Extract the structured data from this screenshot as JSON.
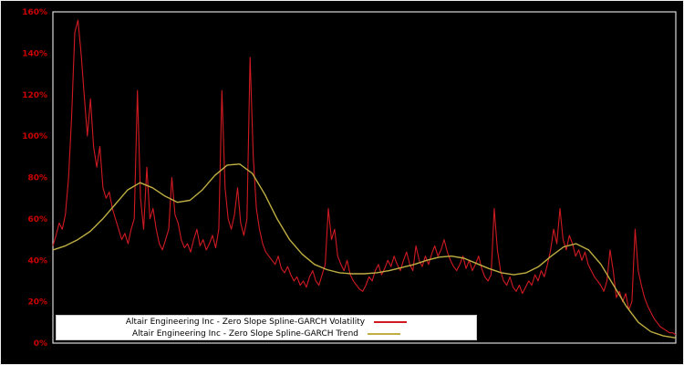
{
  "chart_data": {
    "type": "line",
    "title": "",
    "xlabel": "",
    "ylabel": "",
    "ylim": [
      0,
      160
    ],
    "grid": false,
    "legend_position": "bottom-center",
    "background_color": "#000000",
    "frame_color": "#d9d9d9",
    "axis_label_color": "#cc0000",
    "y_ticks": [
      "0%",
      "20%",
      "40%",
      "60%",
      "80%",
      "100%",
      "120%",
      "140%",
      "160%"
    ],
    "y_tick_values": [
      0,
      20,
      40,
      60,
      80,
      100,
      120,
      140,
      160
    ],
    "series": [
      {
        "name": "Altair Engineering Inc - Zero Slope Spline-GARCH Volatility",
        "color": "#d01a22",
        "values": [
          47,
          52,
          58,
          55,
          62,
          80,
          110,
          150,
          156,
          140,
          120,
          100,
          118,
          95,
          85,
          95,
          75,
          70,
          73,
          65,
          60,
          55,
          50,
          53,
          48,
          55,
          60,
          122,
          70,
          55,
          85,
          60,
          65,
          55,
          48,
          45,
          50,
          55,
          80,
          62,
          58,
          50,
          46,
          48,
          44,
          50,
          55,
          47,
          50,
          45,
          48,
          52,
          46,
          55,
          122,
          75,
          60,
          55,
          62,
          75,
          58,
          52,
          60,
          138,
          90,
          65,
          55,
          48,
          44,
          42,
          40,
          38,
          42,
          36,
          34,
          37,
          33,
          30,
          32,
          28,
          30,
          27,
          32,
          35,
          30,
          28,
          33,
          38,
          65,
          50,
          55,
          42,
          38,
          35,
          40,
          33,
          30,
          28,
          26,
          25,
          28,
          32,
          30,
          35,
          38,
          33,
          36,
          40,
          37,
          42,
          38,
          35,
          40,
          44,
          38,
          35,
          47,
          40,
          37,
          42,
          38,
          43,
          47,
          42,
          45,
          50,
          44,
          40,
          37,
          35,
          38,
          42,
          36,
          40,
          35,
          38,
          42,
          36,
          32,
          30,
          33,
          65,
          45,
          35,
          30,
          28,
          32,
          27,
          25,
          28,
          24,
          27,
          30,
          28,
          33,
          30,
          35,
          32,
          38,
          45,
          55,
          48,
          65,
          50,
          45,
          52,
          48,
          42,
          45,
          40,
          44,
          38,
          35,
          32,
          30,
          28,
          25,
          30,
          45,
          35,
          22,
          25,
          20,
          24,
          16,
          20,
          55,
          35,
          28,
          22,
          18,
          15,
          12,
          10,
          8,
          7,
          6,
          5,
          5,
          4
        ]
      },
      {
        "name": "Altair Engineering Inc - Zero Slope Spline-GARCH Trend",
        "color": "#bfae42",
        "values": [
          45,
          47,
          50,
          54,
          60,
          67,
          74,
          77.5,
          75,
          71,
          68,
          69,
          74,
          81,
          86,
          86.5,
          82,
          72,
          60,
          50,
          43,
          38,
          35.5,
          34,
          33.5,
          33.5,
          34,
          35,
          36.5,
          38,
          40,
          41.5,
          42,
          41,
          38.5,
          36,
          34,
          33,
          34,
          37,
          42,
          46.5,
          48,
          45,
          38,
          28,
          18,
          10,
          5.5,
          3.5,
          2.5
        ]
      }
    ]
  }
}
